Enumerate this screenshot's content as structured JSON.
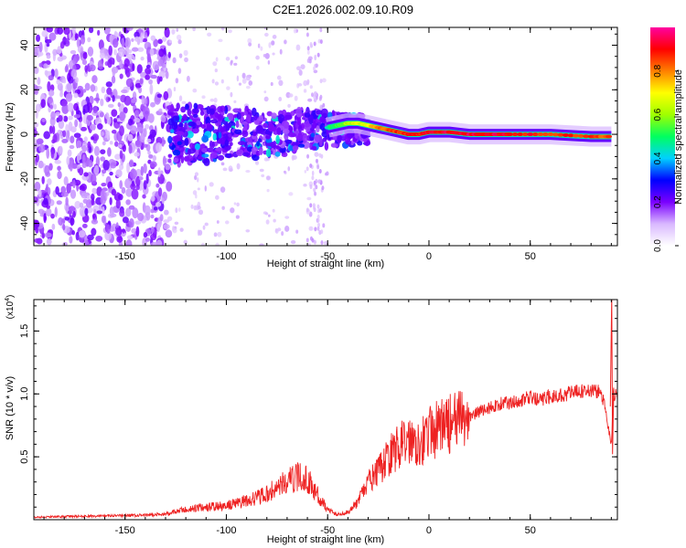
{
  "title": "C2E1.2026.002.09.10.R09",
  "chart_data": [
    {
      "type": "heatmap",
      "xlabel": "Height of straight line (km)",
      "ylabel": "Frequency (Hz)",
      "xlim": [
        -195,
        93
      ],
      "ylim": [
        -50,
        48
      ],
      "xticks": [
        -150,
        -100,
        -50,
        0,
        50
      ],
      "yticks": [
        -40,
        -20,
        0,
        20,
        40
      ],
      "colorbar": {
        "label": "Normalized spectral amplitude",
        "range": [
          0.0,
          1.0
        ],
        "ticks": [
          "0.0",
          "0.2",
          "0.4",
          "0.6",
          "0.8"
        ],
        "colormap": [
          "#ffffff",
          "#d9b8ff",
          "#7a00ff",
          "#0000ff",
          "#00d0ff",
          "#00ff60",
          "#a0ff00",
          "#ffff00",
          "#ff8000",
          "#ff0000",
          "#ff00a0"
        ]
      },
      "ridge": {
        "x": [
          -50,
          -45,
          -40,
          -35,
          -30,
          -25,
          -20,
          -15,
          -10,
          -5,
          0,
          10,
          20,
          30,
          40,
          60,
          80,
          90
        ],
        "freq": [
          3,
          4,
          5,
          5,
          4,
          3,
          2,
          1,
          0,
          0,
          1,
          1,
          0,
          0,
          0,
          0,
          -1,
          -1
        ],
        "amplitude": [
          0.45,
          0.55,
          0.62,
          0.66,
          0.7,
          0.8,
          0.85,
          0.88,
          0.9,
          0.9,
          0.92,
          0.93,
          0.94,
          0.94,
          0.92,
          0.88,
          0.86,
          0.85
        ]
      },
      "noisy_region_x": [
        -195,
        -128
      ],
      "scattered_region_x": [
        -128,
        -50
      ]
    },
    {
      "type": "line",
      "xlabel": "Height of straight line (km)",
      "ylabel": "SNR (10 * v/v)",
      "y_multiplier_label": "(x10",
      "y_multiplier_exp": "4",
      "xlim": [
        -195,
        93
      ],
      "ylim": [
        0,
        17500
      ],
      "xticks": [
        -150,
        -100,
        -50,
        0,
        50
      ],
      "yticks": [
        5000,
        10000,
        15000
      ],
      "ytick_labels": [
        "0.5",
        "1.0",
        "1.5"
      ],
      "series": [
        {
          "color": "#ee2222",
          "x": [
            -195,
            -180,
            -160,
            -140,
            -130,
            -120,
            -110,
            -100,
            -90,
            -80,
            -75,
            -70,
            -65,
            -60,
            -55,
            -50,
            -45,
            -40,
            -35,
            -30,
            -25,
            -20,
            -15,
            -10,
            -5,
            0,
            5,
            10,
            15,
            20,
            25,
            30,
            35,
            40,
            45,
            50,
            55,
            60,
            65,
            70,
            75,
            80,
            85,
            88,
            90,
            91,
            93
          ],
          "y": [
            200,
            250,
            300,
            350,
            450,
            800,
            1000,
            1100,
            1500,
            2000,
            2600,
            3000,
            3400,
            3200,
            2000,
            800,
            400,
            600,
            1400,
            3000,
            3800,
            5000,
            5800,
            6400,
            6200,
            6800,
            7300,
            7600,
            7800,
            8200,
            8600,
            8900,
            9200,
            9300,
            9500,
            9700,
            9500,
            9800,
            9900,
            10100,
            10200,
            10300,
            10100,
            8000,
            6000,
            10000,
            9800
          ]
        }
      ]
    }
  ]
}
